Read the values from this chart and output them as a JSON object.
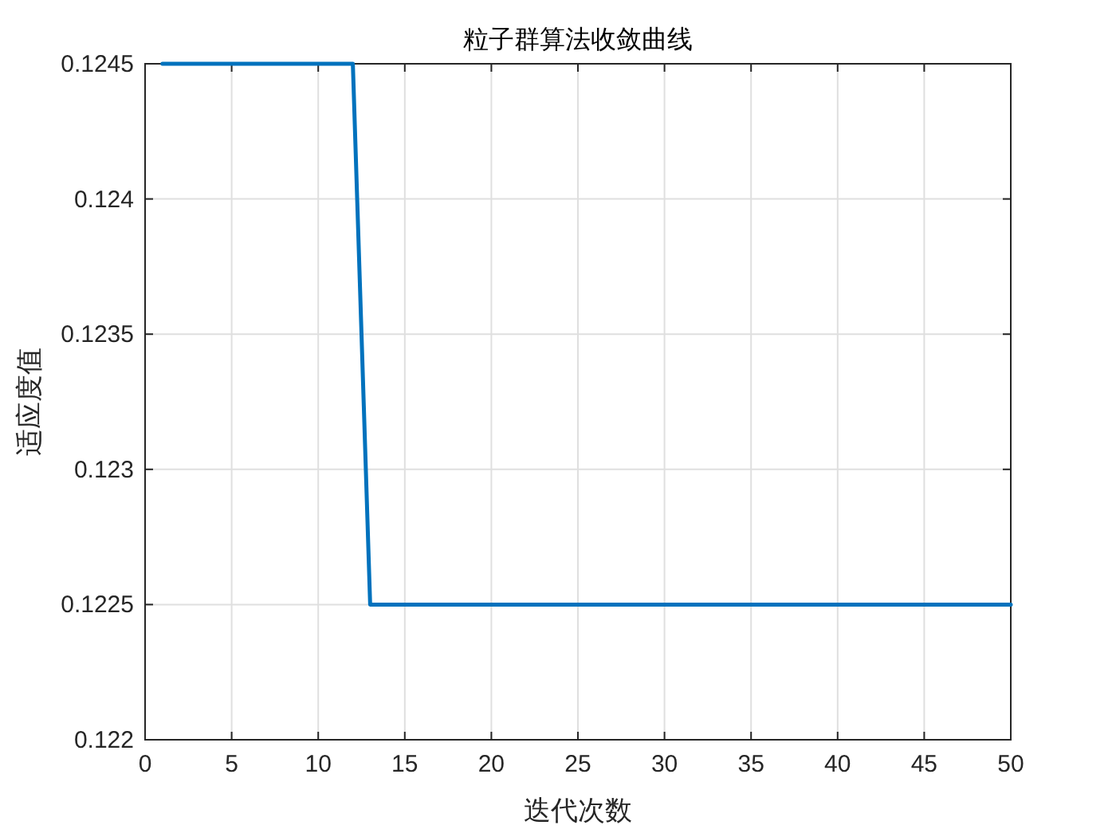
{
  "chart_data": {
    "type": "line",
    "title": "粒子群算法收敛曲线",
    "xlabel": "迭代次数",
    "ylabel": "适应度值",
    "x": [
      1,
      12,
      13,
      50
    ],
    "series": [
      {
        "color": "#0072bd",
        "values": [
          0.1245,
          0.1245,
          0.1225,
          0.1225
        ]
      }
    ],
    "xlim": [
      0,
      50
    ],
    "xticks": [
      0,
      5,
      10,
      15,
      20,
      25,
      30,
      35,
      40,
      45,
      50
    ],
    "ylim": [
      0.122,
      0.1245
    ],
    "yticks": [
      0.122,
      0.1225,
      0.123,
      0.1235,
      0.124,
      0.1245
    ],
    "grid": true,
    "marker": "none",
    "line_style": "solid"
  }
}
